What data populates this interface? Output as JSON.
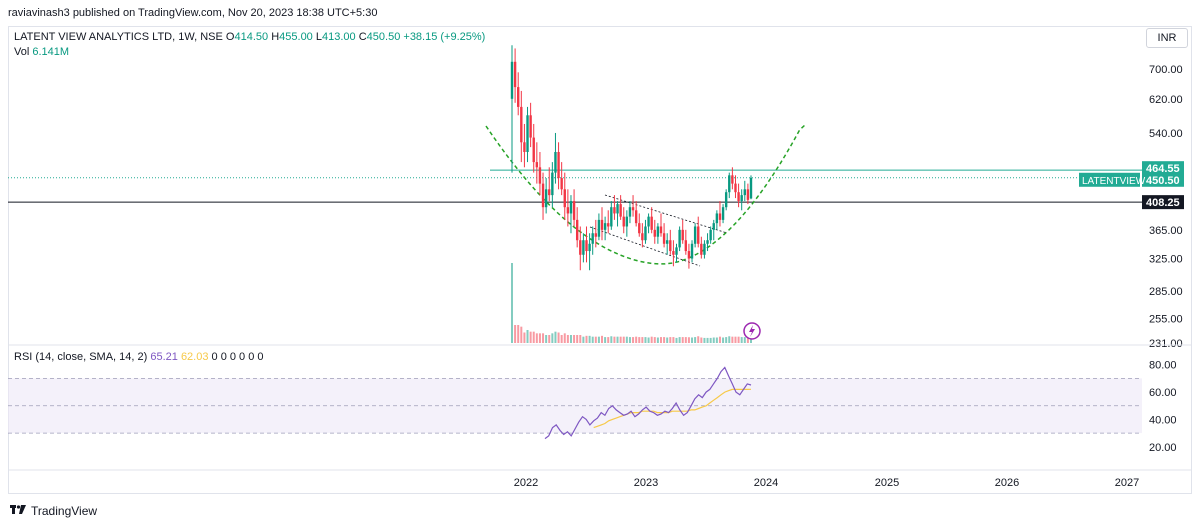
{
  "header": {
    "publisher": "raviavinash3 published on TradingView.com, Nov 20, 2023 18:38 UTC+5:30"
  },
  "legend": {
    "symbol": "LATENT VIEW ANALYTICS LTD, 1W, NSE",
    "open_label": "O",
    "open": "414.50",
    "high_label": "H",
    "high": "455.00",
    "low_label": "L",
    "low": "413.00",
    "close_label": "C",
    "close": "450.50",
    "change": "+38.15 (+9.25%)",
    "vol_label": "Vol",
    "vol": "6.141M"
  },
  "rsi_legend": {
    "label": "RSI (14, close, SMA, 14, 2)",
    "rsi": "65.21",
    "sma": "62.03",
    "extras": "0 0 0 0 0 0"
  },
  "currency": "INR",
  "footer": {
    "brand": "TradingView"
  },
  "colors": {
    "up": "#089981",
    "down": "#f23645",
    "teal_line": "#22ab94",
    "pattern": "#27a327",
    "rsi": "#7e57c2",
    "rsi_ma": "#f7c948",
    "rsi_band": "#ede7f6"
  },
  "chart_data": [
    {
      "type": "candlestick",
      "title": "LATENT VIEW ANALYTICS LTD, 1W, NSE",
      "y_ticks": [
        "700.00",
        "620.00",
        "540.00",
        "365.00",
        "325.00",
        "285.00",
        "255.00",
        "231.00"
      ],
      "x_ticks": [
        "2022",
        "2023",
        "2024",
        "2025",
        "2026",
        "2027"
      ],
      "ylim": [
        231,
        780
      ],
      "scale": "log",
      "price_labels": [
        {
          "label": "464.55",
          "value": 464.55
        },
        {
          "label": "450.50",
          "value": 450.5,
          "name": "LATENTVIEW"
        },
        {
          "label": "408.25",
          "value": 408.25
        }
      ],
      "horizontal_lines": [
        {
          "value": 464.55,
          "color": "teal"
        },
        {
          "value": 408.25,
          "color": "black"
        }
      ],
      "annotations": [
        "rounding bottom (cup) dashed curve",
        "descending channel"
      ],
      "ohlc": [
        {
          "o": 620,
          "h": 770,
          "l": 460,
          "c": 720
        },
        {
          "o": 720,
          "h": 760,
          "l": 610,
          "c": 650
        },
        {
          "o": 650,
          "h": 690,
          "l": 580,
          "c": 600
        },
        {
          "o": 600,
          "h": 640,
          "l": 480,
          "c": 520
        },
        {
          "o": 520,
          "h": 560,
          "l": 470,
          "c": 500
        },
        {
          "o": 500,
          "h": 600,
          "l": 480,
          "c": 580
        },
        {
          "o": 580,
          "h": 610,
          "l": 510,
          "c": 530
        },
        {
          "o": 530,
          "h": 560,
          "l": 460,
          "c": 480
        },
        {
          "o": 480,
          "h": 520,
          "l": 440,
          "c": 470
        },
        {
          "o": 470,
          "h": 500,
          "l": 420,
          "c": 440
        },
        {
          "o": 440,
          "h": 460,
          "l": 380,
          "c": 400
        },
        {
          "o": 400,
          "h": 450,
          "l": 390,
          "c": 430
        },
        {
          "o": 430,
          "h": 470,
          "l": 410,
          "c": 420
        },
        {
          "o": 420,
          "h": 480,
          "l": 400,
          "c": 460
        },
        {
          "o": 460,
          "h": 540,
          "l": 440,
          "c": 500
        },
        {
          "o": 500,
          "h": 520,
          "l": 430,
          "c": 450
        },
        {
          "o": 450,
          "h": 480,
          "l": 420,
          "c": 430
        },
        {
          "o": 430,
          "h": 460,
          "l": 380,
          "c": 400
        },
        {
          "o": 400,
          "h": 430,
          "l": 370,
          "c": 390
        },
        {
          "o": 390,
          "h": 420,
          "l": 360,
          "c": 410
        },
        {
          "o": 410,
          "h": 430,
          "l": 370,
          "c": 380
        },
        {
          "o": 380,
          "h": 400,
          "l": 340,
          "c": 350
        },
        {
          "o": 350,
          "h": 370,
          "l": 310,
          "c": 330
        },
        {
          "o": 330,
          "h": 360,
          "l": 320,
          "c": 350
        },
        {
          "o": 350,
          "h": 370,
          "l": 320,
          "c": 335
        },
        {
          "o": 335,
          "h": 360,
          "l": 310,
          "c": 345
        },
        {
          "o": 345,
          "h": 370,
          "l": 330,
          "c": 360
        },
        {
          "o": 360,
          "h": 380,
          "l": 340,
          "c": 355
        },
        {
          "o": 355,
          "h": 390,
          "l": 350,
          "c": 380
        },
        {
          "o": 380,
          "h": 400,
          "l": 350,
          "c": 365
        },
        {
          "o": 365,
          "h": 385,
          "l": 350,
          "c": 375
        },
        {
          "o": 375,
          "h": 395,
          "l": 360,
          "c": 370
        },
        {
          "o": 370,
          "h": 410,
          "l": 365,
          "c": 400
        },
        {
          "o": 400,
          "h": 420,
          "l": 380,
          "c": 390
        },
        {
          "o": 390,
          "h": 410,
          "l": 370,
          "c": 405
        },
        {
          "o": 405,
          "h": 420,
          "l": 380,
          "c": 385
        },
        {
          "o": 385,
          "h": 400,
          "l": 360,
          "c": 370
        },
        {
          "o": 370,
          "h": 395,
          "l": 355,
          "c": 385
        },
        {
          "o": 385,
          "h": 410,
          "l": 375,
          "c": 400
        },
        {
          "o": 400,
          "h": 420,
          "l": 385,
          "c": 395
        },
        {
          "o": 395,
          "h": 410,
          "l": 370,
          "c": 375
        },
        {
          "o": 375,
          "h": 390,
          "l": 355,
          "c": 360
        },
        {
          "o": 360,
          "h": 375,
          "l": 340,
          "c": 350
        },
        {
          "o": 350,
          "h": 380,
          "l": 345,
          "c": 370
        },
        {
          "o": 370,
          "h": 390,
          "l": 360,
          "c": 385
        },
        {
          "o": 385,
          "h": 400,
          "l": 360,
          "c": 365
        },
        {
          "o": 365,
          "h": 380,
          "l": 345,
          "c": 355
        },
        {
          "o": 355,
          "h": 375,
          "l": 345,
          "c": 370
        },
        {
          "o": 370,
          "h": 390,
          "l": 355,
          "c": 360
        },
        {
          "o": 360,
          "h": 375,
          "l": 340,
          "c": 345
        },
        {
          "o": 345,
          "h": 360,
          "l": 330,
          "c": 350
        },
        {
          "o": 350,
          "h": 365,
          "l": 330,
          "c": 335
        },
        {
          "o": 335,
          "h": 350,
          "l": 315,
          "c": 330
        },
        {
          "o": 330,
          "h": 345,
          "l": 320,
          "c": 340
        },
        {
          "o": 340,
          "h": 370,
          "l": 335,
          "c": 365
        },
        {
          "o": 365,
          "h": 380,
          "l": 345,
          "c": 350
        },
        {
          "o": 350,
          "h": 365,
          "l": 330,
          "c": 335
        },
        {
          "o": 335,
          "h": 345,
          "l": 312,
          "c": 325
        },
        {
          "o": 325,
          "h": 350,
          "l": 320,
          "c": 345
        },
        {
          "o": 345,
          "h": 375,
          "l": 340,
          "c": 370
        },
        {
          "o": 370,
          "h": 385,
          "l": 340,
          "c": 345
        },
        {
          "o": 345,
          "h": 355,
          "l": 325,
          "c": 330
        },
        {
          "o": 330,
          "h": 350,
          "l": 325,
          "c": 345
        },
        {
          "o": 345,
          "h": 360,
          "l": 335,
          "c": 350
        },
        {
          "o": 350,
          "h": 370,
          "l": 345,
          "c": 365
        },
        {
          "o": 365,
          "h": 380,
          "l": 350,
          "c": 375
        },
        {
          "o": 375,
          "h": 395,
          "l": 365,
          "c": 390
        },
        {
          "o": 390,
          "h": 410,
          "l": 370,
          "c": 380
        },
        {
          "o": 380,
          "h": 405,
          "l": 375,
          "c": 400
        },
        {
          "o": 400,
          "h": 430,
          "l": 395,
          "c": 425
        },
        {
          "o": 425,
          "h": 460,
          "l": 415,
          "c": 455
        },
        {
          "o": 455,
          "h": 470,
          "l": 430,
          "c": 440
        },
        {
          "o": 440,
          "h": 455,
          "l": 415,
          "c": 425
        },
        {
          "o": 425,
          "h": 440,
          "l": 400,
          "c": 410
        },
        {
          "o": 410,
          "h": 430,
          "l": 395,
          "c": 420
        },
        {
          "o": 420,
          "h": 445,
          "l": 410,
          "c": 430
        },
        {
          "o": 430,
          "h": 440,
          "l": 405,
          "c": 412
        },
        {
          "o": 414.5,
          "h": 455,
          "l": 413,
          "c": 450.5
        }
      ]
    },
    {
      "type": "line",
      "title": "RSI (14, close, SMA, 14, 2)",
      "y_ticks": [
        "80.00",
        "60.00",
        "40.00",
        "20.00"
      ],
      "ylim": [
        14,
        82
      ],
      "bands": [
        70,
        50,
        30
      ],
      "series": [
        {
          "name": "RSI",
          "values": [
            26,
            28,
            34,
            36,
            32,
            29,
            31,
            28,
            33,
            38,
            42,
            40,
            36,
            39,
            41,
            45,
            43,
            48,
            50,
            47,
            45,
            43,
            44,
            46,
            42,
            44,
            47,
            49,
            46,
            45,
            43,
            44,
            46,
            45,
            48,
            52,
            47,
            43,
            45,
            50,
            55,
            58,
            56,
            60,
            62,
            66,
            70,
            75,
            78,
            72,
            66,
            60,
            58,
            62,
            66,
            65.21
          ]
        },
        {
          "name": "SMA",
          "values": [
            null,
            null,
            null,
            null,
            null,
            null,
            null,
            null,
            null,
            null,
            null,
            null,
            null,
            34,
            35,
            36,
            37,
            39,
            40,
            41,
            42,
            43,
            44,
            45,
            45,
            45,
            46,
            46,
            46,
            46,
            45,
            45,
            45,
            45,
            46,
            46,
            46,
            46,
            46,
            47,
            47,
            48,
            49,
            50,
            52,
            54,
            56,
            58,
            60,
            61,
            62,
            62,
            62,
            62,
            62,
            62.03
          ]
        }
      ]
    }
  ]
}
